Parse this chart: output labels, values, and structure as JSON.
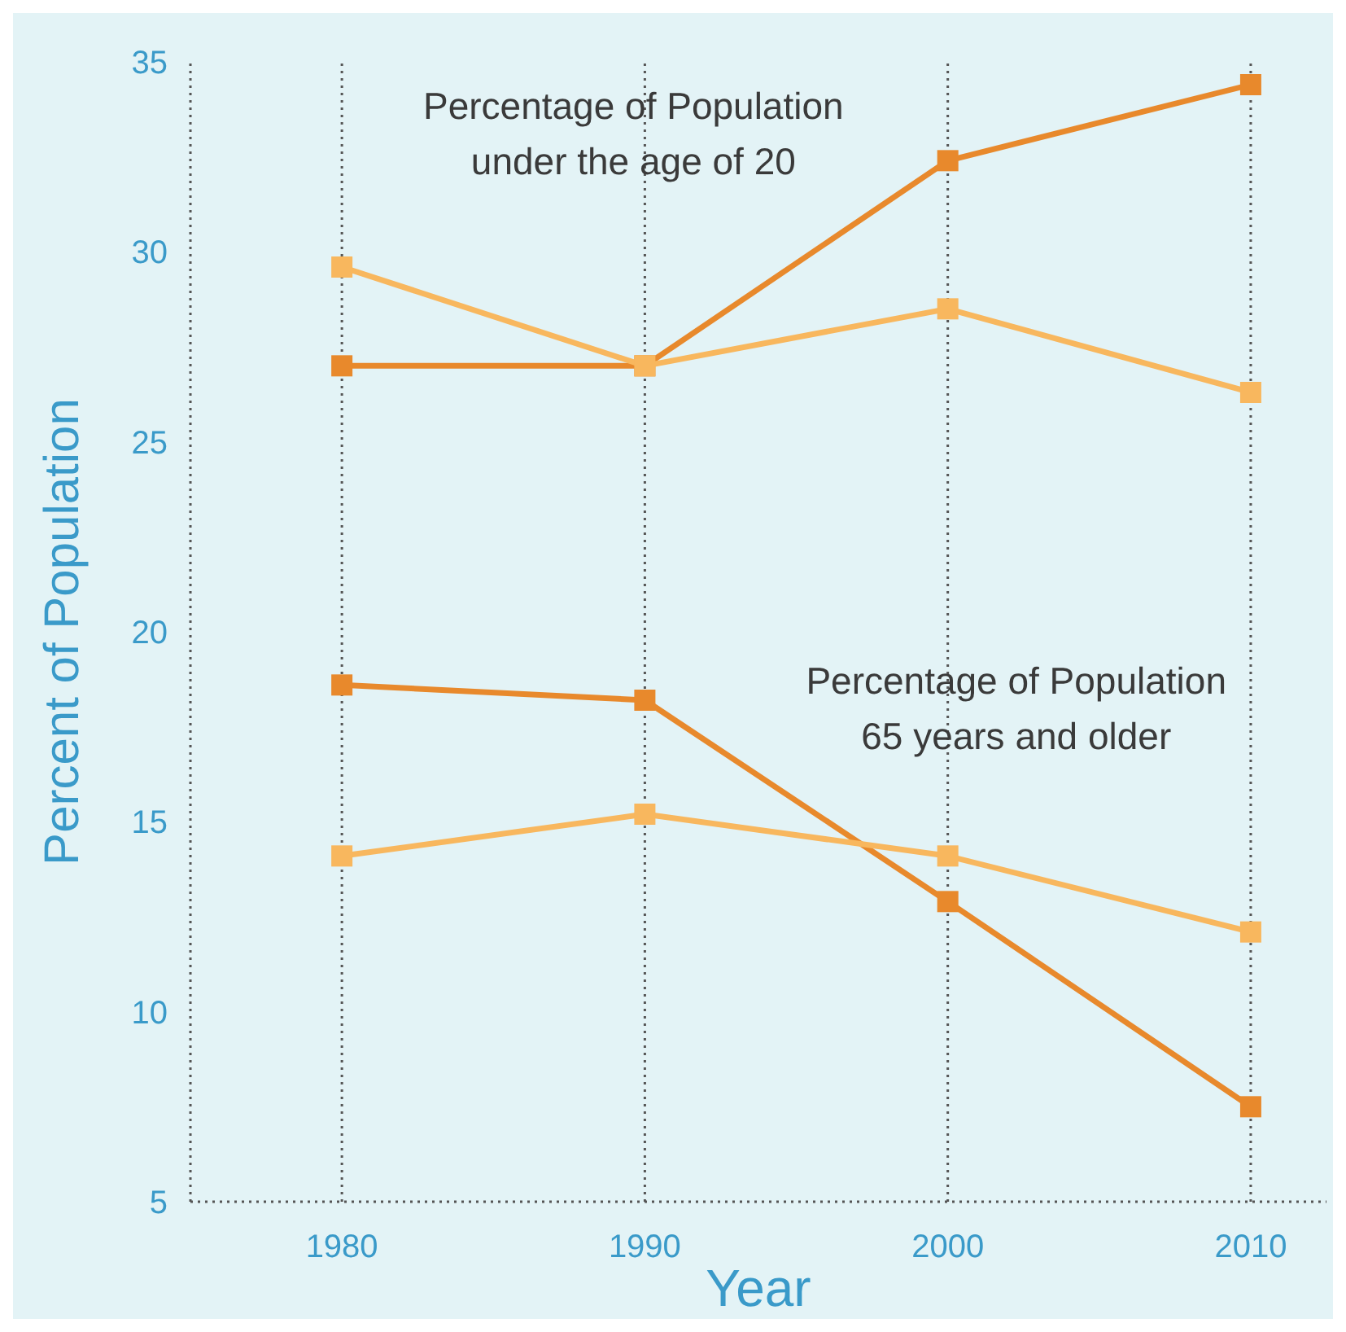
{
  "chart_data": {
    "type": "line",
    "xlabel": "Year",
    "ylabel": "Percent of Population",
    "x": [
      1980,
      1990,
      2000,
      2010
    ],
    "xlim": [
      1975,
      2012.5
    ],
    "xticks": [
      1980,
      1990,
      2000,
      2010
    ],
    "ylim": [
      5,
      35
    ],
    "yticks": [
      5,
      10,
      15,
      20,
      25,
      30,
      35
    ],
    "grid": "x",
    "marker": "square",
    "line_style": "solid",
    "series": [
      {
        "color": "#e8892c",
        "values": [
          27.0,
          27.0,
          32.4,
          34.4
        ]
      },
      {
        "color": "#f8b75e",
        "values": [
          29.6,
          27.0,
          28.5,
          26.3
        ]
      },
      {
        "color": "#e8892c",
        "values": [
          18.6,
          18.2,
          12.9,
          7.5
        ]
      },
      {
        "color": "#f8b75e",
        "values": [
          14.1,
          15.2,
          14.1,
          12.1
        ]
      }
    ],
    "annotations": [
      "Percentage of Population\nunder the age of 20",
      "Percentage of Population\n65 years and older"
    ]
  }
}
